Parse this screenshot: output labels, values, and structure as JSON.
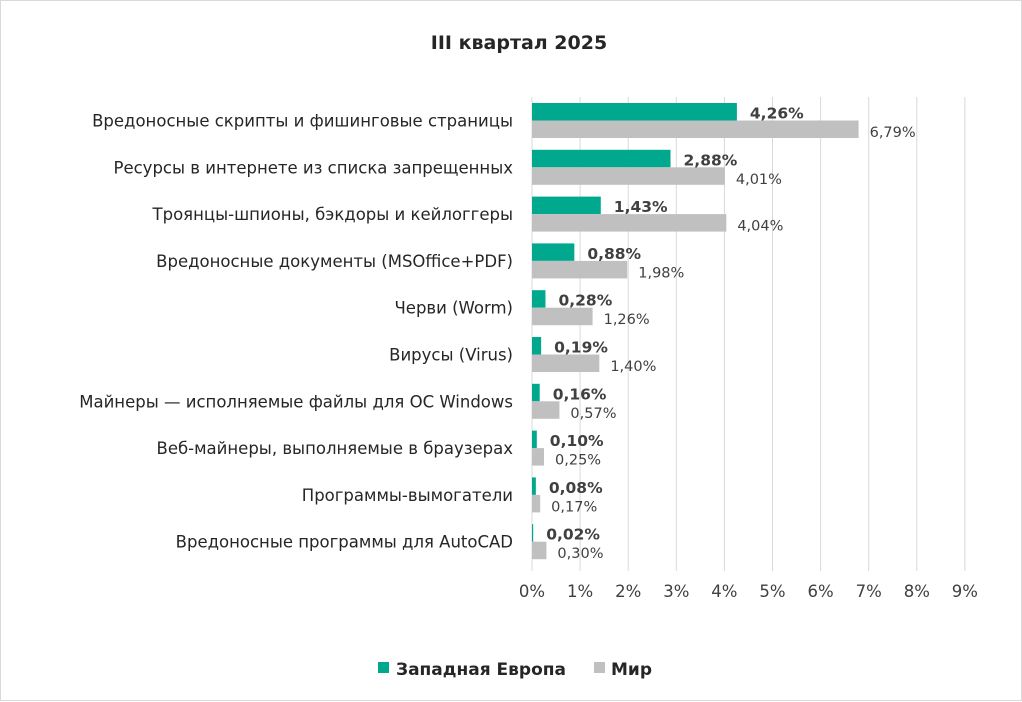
{
  "chart_data": {
    "type": "bar",
    "orientation": "horizontal",
    "title": "III квартал 2025",
    "categories": [
      "Вредоносные скрипты и фишинговые страницы",
      "Ресурсы в интернете из списка запрещенных",
      "Троянцы-шпионы, бэкдоры и кейлоггеры",
      "Вредоносные документы (MSOffice+PDF)",
      "Черви (Worm)",
      "Вирусы (Virus)",
      "Майнеры — исполняемые файлы для ОС Windows",
      "Веб-майнеры, выполняемые в браузерах",
      "Программы-вымогатели",
      "Вредоносные программы для AutoCAD"
    ],
    "series": [
      {
        "name": "Западная Европа",
        "color": "#00a88e",
        "values": [
          4.26,
          2.88,
          1.43,
          0.88,
          0.28,
          0.19,
          0.16,
          0.1,
          0.08,
          0.02
        ],
        "labels": [
          "4,26%",
          "2,88%",
          "1,43%",
          "0,88%",
          "0,28%",
          "0,19%",
          "0,16%",
          "0,10%",
          "0,08%",
          "0,02%"
        ]
      },
      {
        "name": "Мир",
        "color": "#c0c0c0",
        "values": [
          6.79,
          4.01,
          4.04,
          1.98,
          1.26,
          1.4,
          0.57,
          0.25,
          0.17,
          0.3
        ],
        "labels": [
          "6,79%",
          "4,01%",
          "4,04%",
          "1,98%",
          "1,26%",
          "1,40%",
          "0,57%",
          "0,25%",
          "0,17%",
          "0,30%"
        ]
      }
    ],
    "xlim": [
      0,
      9
    ],
    "x_ticks": [
      "0%",
      "1%",
      "2%",
      "3%",
      "4%",
      "5%",
      "6%",
      "7%",
      "8%",
      "9%"
    ],
    "grid": "vertical",
    "legend": "bottom-center"
  }
}
